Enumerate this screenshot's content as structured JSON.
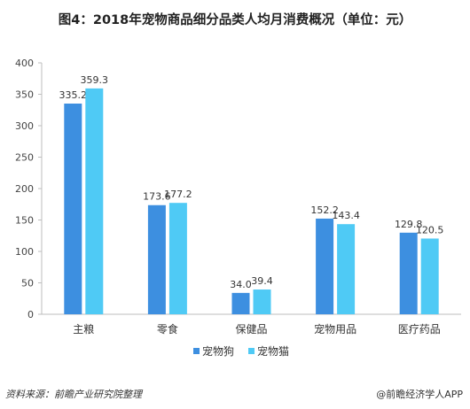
{
  "header": {
    "title": "图4：2018年宠物商品细分品类人均月消费概况（单位：元）"
  },
  "chart_data": {
    "type": "bar",
    "categories": [
      "主粮",
      "零食",
      "保健品",
      "宠物用品",
      "医疗药品"
    ],
    "series": [
      {
        "name": "宠物狗",
        "values": [
          335.2,
          173.6,
          34.0,
          152.2,
          129.8
        ],
        "color": "#3d8fe0"
      },
      {
        "name": "宠物猫",
        "values": [
          359.3,
          177.2,
          39.4,
          143.4,
          120.5
        ],
        "color": "#4fcaf5"
      }
    ],
    "yticks": [
      0,
      50,
      100,
      150,
      200,
      250,
      300,
      350,
      400
    ],
    "ylim": [
      0,
      400
    ],
    "grid": false,
    "legend": "bottom-center",
    "data_labels": true
  },
  "footer": {
    "source": "资料来源：前瞻产业研究院整理",
    "credit": "@前瞻经济学人APP"
  }
}
